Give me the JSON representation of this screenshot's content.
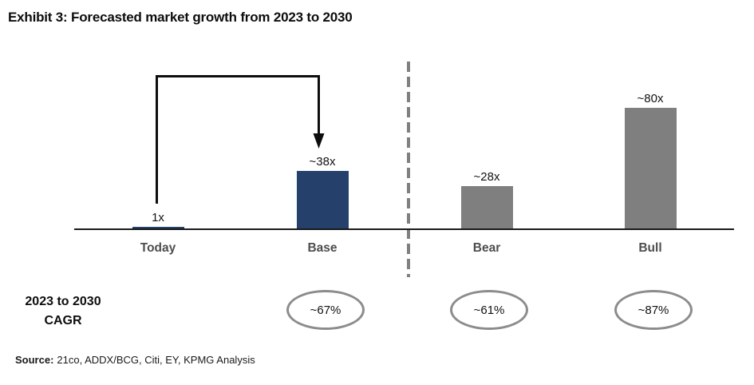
{
  "title": "Exhibit 3: Forecasted market growth from 2023 to 2030",
  "chart_data": {
    "type": "bar",
    "title": "Exhibit 3: Forecasted market growth from 2023 to 2030",
    "categories": [
      "Today",
      "Base",
      "Bear",
      "Bull"
    ],
    "values": [
      1,
      38,
      28,
      80
    ],
    "bar_labels": [
      "1x",
      "~38x",
      "~28x",
      "~80x"
    ],
    "bar_colors": [
      "#24406B",
      "#24406B",
      "#7F7F7F",
      "#7F7F7F"
    ],
    "xlabel": "",
    "ylabel": "",
    "ylim": [
      0,
      90
    ],
    "grid": false,
    "legend": false,
    "divider": {
      "between": [
        "Base",
        "Bear"
      ],
      "style": "dashed-vertical",
      "color": "#808080"
    },
    "annotation": {
      "type": "arrow",
      "from": "Today",
      "to": "Base",
      "color": "#0d0d0d"
    },
    "cagr_row": {
      "label_line1": "2023 to 2030",
      "label_line2": "CAGR",
      "values": {
        "Base": "~67%",
        "Bear": "~61%",
        "Bull": "~87%"
      }
    }
  },
  "source": {
    "prefix": "Source:",
    "text": "21co, ADDX/BCG, Citi, EY, KPMG Analysis"
  },
  "colors": {
    "navy_bar": "#24406B",
    "gray_bar": "#7F7F7F",
    "divider_gray": "#808080",
    "ellipse_stroke": "#8C8C8C",
    "category_label_gray": "#4D4D4D",
    "axis_black": "#1A1A1A"
  }
}
